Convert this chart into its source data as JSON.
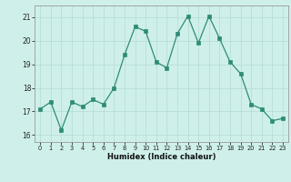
{
  "x": [
    0,
    1,
    2,
    3,
    4,
    5,
    6,
    7,
    8,
    9,
    10,
    11,
    12,
    13,
    14,
    15,
    16,
    17,
    18,
    19,
    20,
    21,
    22,
    23
  ],
  "y": [
    17.1,
    17.4,
    16.2,
    17.4,
    17.2,
    17.5,
    17.3,
    18.0,
    19.4,
    20.6,
    20.4,
    19.1,
    18.85,
    20.3,
    21.05,
    19.9,
    21.05,
    20.1,
    19.1,
    18.6,
    17.3,
    17.1,
    16.6,
    16.7
  ],
  "line_color": "#2e8b77",
  "marker_color": "#2e8b77",
  "bg_color": "#cff0ea",
  "grid_color_major": "#b8ddd8",
  "grid_color_minor": "#d4eeea",
  "xlabel": "Humidex (Indice chaleur)",
  "ylim": [
    15.7,
    21.5
  ],
  "xlim": [
    -0.5,
    23.5
  ],
  "yticks": [
    16,
    17,
    18,
    19,
    20,
    21
  ],
  "xticks": [
    0,
    1,
    2,
    3,
    4,
    5,
    6,
    7,
    8,
    9,
    10,
    11,
    12,
    13,
    14,
    15,
    16,
    17,
    18,
    19,
    20,
    21,
    22,
    23
  ]
}
